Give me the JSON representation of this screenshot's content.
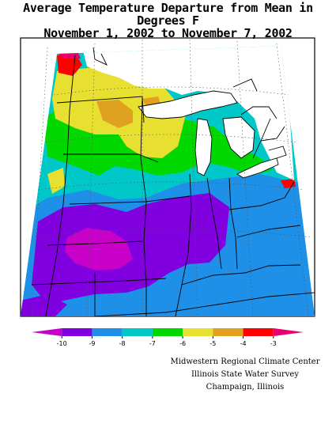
{
  "title": {
    "line1": "Average Temperature Departure from Mean in Degrees F",
    "line2": "November 1, 2002 to November 7, 2002"
  },
  "legend": {
    "ticks": [
      "-10",
      "-9",
      "-8",
      "-7",
      "-6",
      "-5",
      "-4",
      "-3"
    ],
    "bins": [
      {
        "color": "#c800c8"
      },
      {
        "color": "#8000e0"
      },
      {
        "color": "#1e90e8"
      },
      {
        "color": "#00c8c8"
      },
      {
        "color": "#00d800"
      },
      {
        "color": "#e8e030"
      },
      {
        "color": "#e0a020"
      },
      {
        "color": "#ff0000"
      },
      {
        "color": "#e8006e"
      }
    ]
  },
  "credits": {
    "line1": "Midwestern Regional Climate Center",
    "line2": "Illinois State Water Survey",
    "line3": "Champaign, Illinois"
  },
  "colors": {
    "below_10": "#c800c8",
    "n10_n9": "#8000e0",
    "n9_n8": "#1e90e8",
    "n8_n7": "#00c8c8",
    "n7_n6": "#00d800",
    "n6_n5": "#e8e030",
    "n5_n4": "#e0a020",
    "n4_n3": "#ff0000",
    "above_3": "#e8006e"
  }
}
